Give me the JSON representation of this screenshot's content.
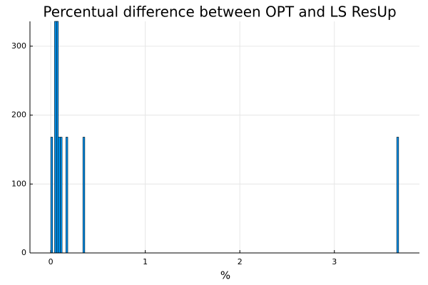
{
  "chart_data": {
    "type": "bar",
    "title": "Percentual difference between OPT and LS ResUp",
    "xlabel": "%",
    "ylabel": "",
    "xlim": [
      -0.22,
      3.9
    ],
    "ylim": [
      0,
      336
    ],
    "xticks": [
      0,
      1,
      2,
      3
    ],
    "yticks": [
      0,
      100,
      200,
      300
    ],
    "grid": true,
    "legend": "none",
    "bar_color": "#009AFA",
    "bin_width": 0.02,
    "bins": [
      {
        "x0": 0.0,
        "x1": 0.02,
        "value": 168
      },
      {
        "x0": 0.04,
        "x1": 0.06,
        "value": 336
      },
      {
        "x0": 0.06,
        "x1": 0.08,
        "value": 336
      },
      {
        "x0": 0.08,
        "x1": 0.1,
        "value": 168
      },
      {
        "x0": 0.1,
        "x1": 0.12,
        "value": 168
      },
      {
        "x0": 0.16,
        "x1": 0.18,
        "value": 168
      },
      {
        "x0": 0.34,
        "x1": 0.36,
        "value": 168
      },
      {
        "x0": 3.66,
        "x1": 3.68,
        "value": 168
      }
    ]
  }
}
